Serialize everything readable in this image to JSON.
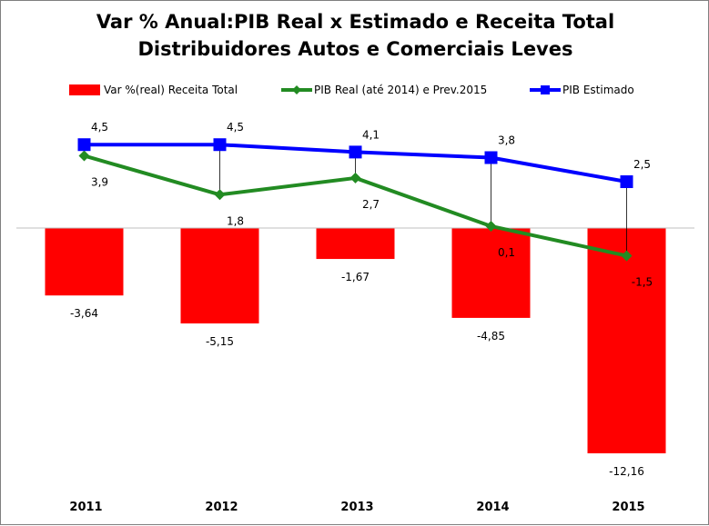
{
  "chart_data": {
    "type": "bar",
    "title_line1": "Var % Anual:PIB Real x Estimado e Receita Total",
    "title_line2": "Distribuidores Autos e Comerciais Leves",
    "categories": [
      "2011",
      "2012",
      "2013",
      "2014",
      "2015"
    ],
    "series": [
      {
        "name": "Var %(real)  Receita Total",
        "kind": "bar",
        "color": "#ff0000",
        "values": [
          -3.64,
          -5.15,
          -1.67,
          -4.85,
          -12.16
        ],
        "labels": [
          "-3,64",
          "-5,15",
          "-1,67",
          "-4,85",
          "-12,16"
        ]
      },
      {
        "name": "PIB Real (até 2014) e Prev.2015",
        "kind": "line",
        "marker": "diamond",
        "color": "#228b22",
        "values": [
          3.9,
          1.8,
          2.7,
          0.1,
          -1.5
        ],
        "labels": [
          "3,9",
          "1,8",
          "2,7",
          "0,1",
          "-1,5"
        ]
      },
      {
        "name": "PIB Estimado",
        "kind": "line",
        "marker": "square",
        "color": "#0000ff",
        "values": [
          4.5,
          4.5,
          4.1,
          3.8,
          2.5
        ],
        "labels": [
          "4,5",
          "4,5",
          "4,1",
          "3,8",
          "2,5"
        ]
      }
    ],
    "drop_lines": true,
    "ylim": [
      -12.16,
      4.5
    ],
    "legend_position": "top",
    "grid": false
  }
}
